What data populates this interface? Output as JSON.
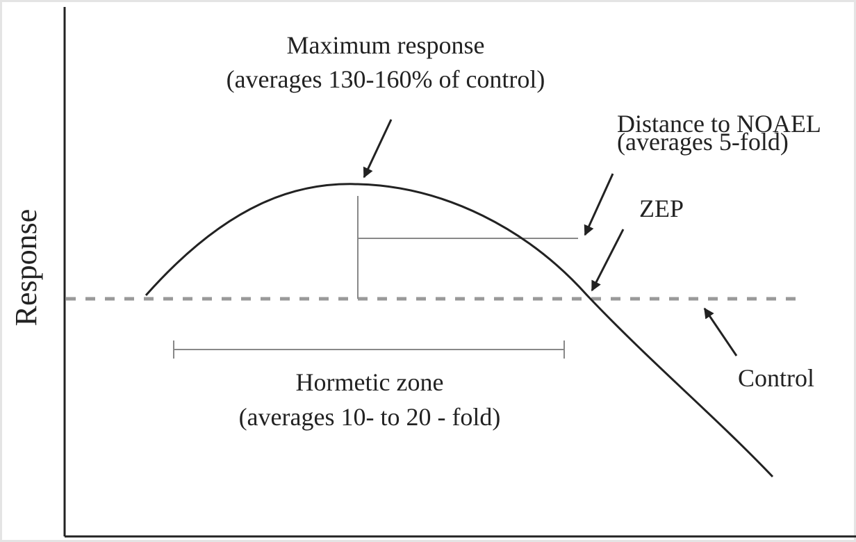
{
  "y_axis_label": "Response",
  "annotations": {
    "maximum_response": {
      "title": "Maximum response",
      "detail": "(averages 130-160% of control)"
    },
    "noael": {
      "title": "Distance to NOAEL",
      "detail": "(averages 5-fold)"
    },
    "zep": {
      "title": "ZEP"
    },
    "hormetic_zone": {
      "title": "Hormetic zone",
      "detail": "(averages 10- to 20 - fold)"
    },
    "control": {
      "title": "Control"
    }
  }
}
